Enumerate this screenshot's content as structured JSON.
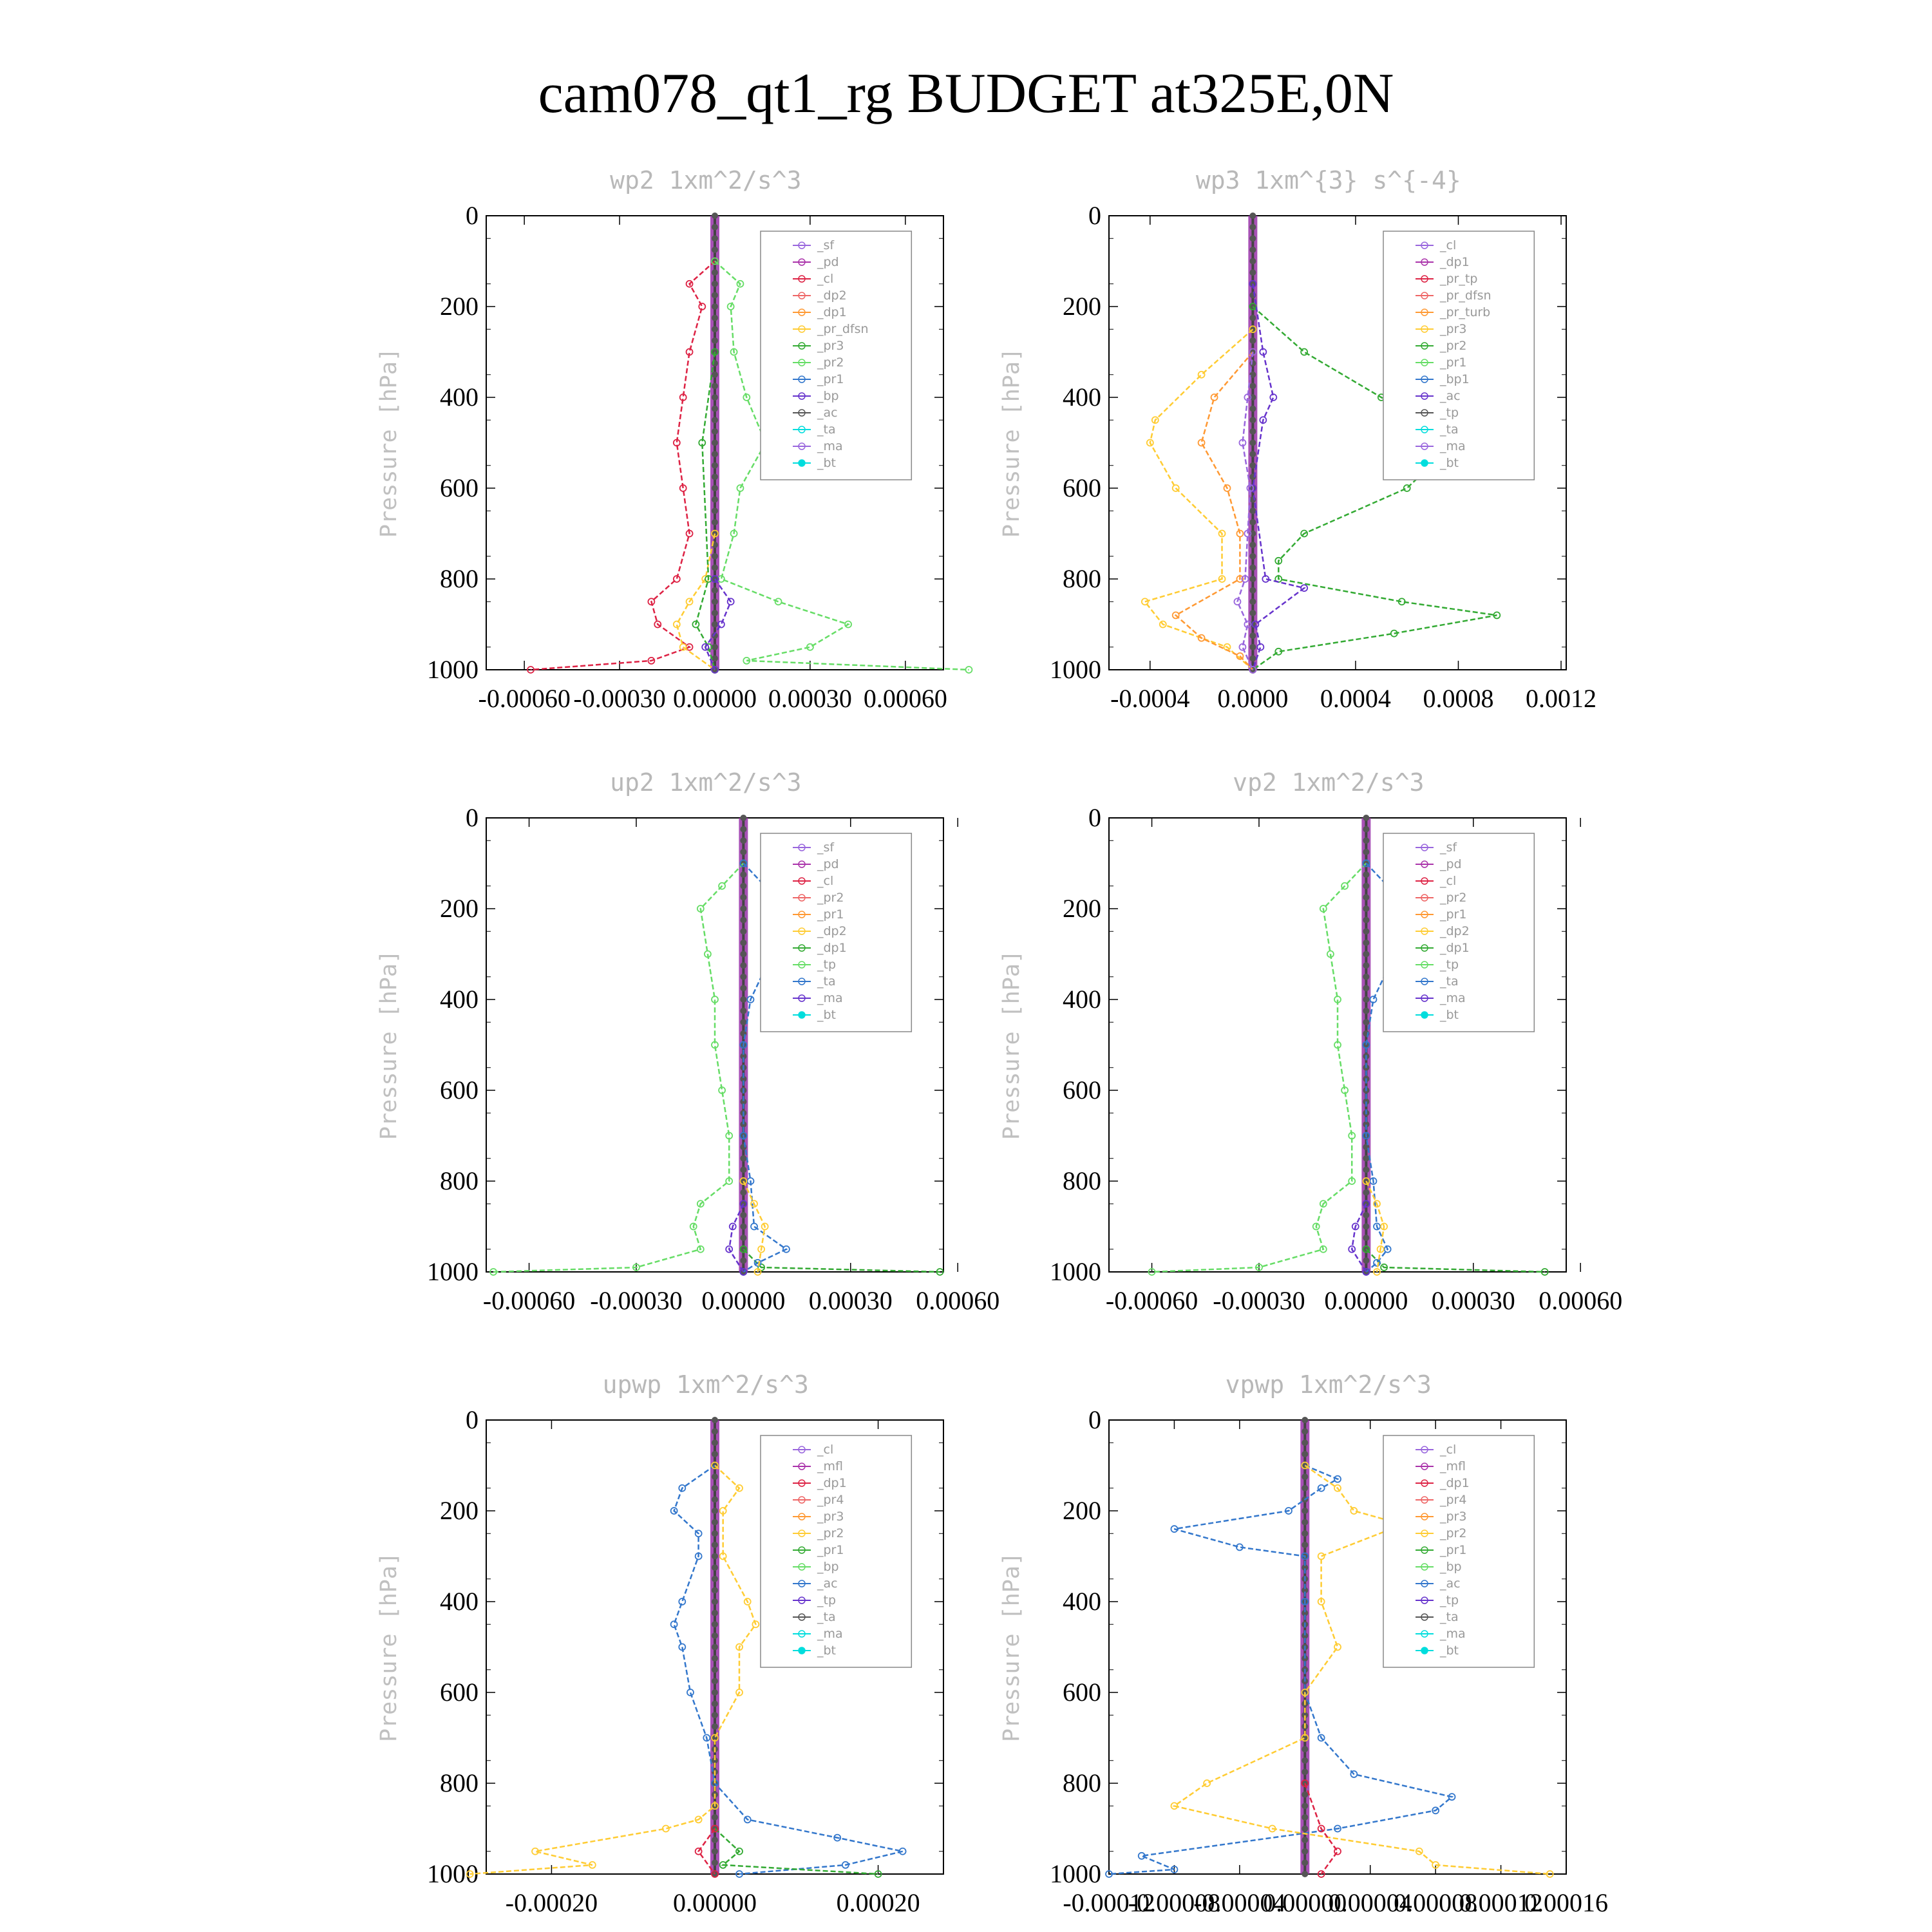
{
  "title": "cam078_qt1_rg  BUDGET at325E,0N",
  "colors": {
    "purple": "#9966dd",
    "magenta": "#aa33aa",
    "red": "#dd2244",
    "lightred": "#ee6666",
    "orange": "#ff9933",
    "yellow": "#ffcc33",
    "green": "#33aa33",
    "lightgreen": "#66dd66",
    "cyan": "#00dddd",
    "blue": "#3377cc",
    "violet": "#6633cc",
    "dark": "#555555"
  },
  "chart_data": [
    {
      "type": "line",
      "title": "wp2  1xm^2/s^3",
      "ylabel": "Pressure [hPa]",
      "xlim": [
        -0.00072,
        0.00072
      ],
      "ylim": [
        0,
        1000
      ],
      "xticks": [
        -0.0006,
        -0.0003,
        0,
        0.0003,
        0.0006
      ],
      "xtick_labels": [
        "-0.00060",
        "-0.00030",
        "0.00000",
        "0.00030",
        "0.00060"
      ],
      "yticks": [
        0,
        200,
        400,
        600,
        800,
        1000
      ],
      "ytick_labels": [
        "0",
        "200",
        "400",
        "600",
        "800",
        "1000"
      ],
      "legend": [
        "_sf",
        "_pd",
        "_cl",
        "_dp2",
        "_dp1",
        "_pr_dfsn",
        "_pr3",
        "_pr2",
        "_pr1",
        "_bp",
        "_ac",
        "_ta",
        "_ma",
        "_bt"
      ],
      "series": [
        {
          "name": "_dp1",
          "color": "#dd2244",
          "p": [
            100,
            150,
            200,
            300,
            400,
            500,
            600,
            700,
            800,
            850,
            900,
            950,
            980,
            1000
          ],
          "v": [
            0,
            -8e-05,
            -4e-05,
            -8e-05,
            -0.0001,
            -0.00012,
            -0.0001,
            -8e-05,
            -0.00012,
            -0.0002,
            -0.00018,
            -8e-05,
            -0.0002,
            -0.00058
          ]
        },
        {
          "name": "_pr1",
          "color": "#66dd66",
          "p": [
            100,
            150,
            200,
            300,
            400,
            500,
            600,
            700,
            800,
            850,
            900,
            950,
            980,
            1000
          ],
          "v": [
            0,
            8e-05,
            5e-05,
            6e-05,
            0.0001,
            0.00016,
            8e-05,
            6e-05,
            2e-05,
            0.0002,
            0.00042,
            0.0003,
            0.0001,
            0.0008
          ]
        },
        {
          "name": "_pr2",
          "color": "#ffcc33",
          "p": [
            700,
            800,
            850,
            900,
            950,
            1000
          ],
          "v": [
            0,
            -3e-05,
            -8e-05,
            -0.00012,
            -0.0001,
            0
          ]
        },
        {
          "name": "_bp",
          "color": "#33aa33",
          "p": [
            300,
            500,
            800,
            900,
            950,
            1000
          ],
          "v": [
            0,
            -4e-05,
            -2e-05,
            -6e-05,
            -2e-05,
            0
          ]
        },
        {
          "name": "_ta",
          "color": "#6633cc",
          "p": [
            800,
            850,
            900,
            950,
            1000
          ],
          "v": [
            0,
            5e-05,
            2e-05,
            -3e-05,
            0
          ]
        }
      ]
    },
    {
      "type": "line",
      "title": "wp3  1xm^{3} s^{-4}",
      "ylabel": "Pressure [hPa]",
      "xlim": [
        -0.00056,
        0.00122
      ],
      "ylim": [
        0,
        1000
      ],
      "xticks": [
        -0.0004,
        0,
        0.0004,
        0.0008,
        0.0012
      ],
      "xtick_labels": [
        "-0.0004",
        "0.0000",
        "0.0004",
        "0.0008",
        "0.0012"
      ],
      "yticks": [
        0,
        200,
        400,
        600,
        800,
        1000
      ],
      "ytick_labels": [
        "0",
        "200",
        "400",
        "600",
        "800",
        "1000"
      ],
      "legend": [
        "_cl",
        "_dp1",
        "_pr_tp",
        "_pr_dfsn",
        "_pr_turb",
        "_pr3",
        "_pr2",
        "_pr1",
        "_bp1",
        "_ac",
        "_tp",
        "_ta",
        "_ma",
        "_bt"
      ],
      "series": [
        {
          "name": "_bp1",
          "color": "#33aa33",
          "p": [
            200,
            300,
            400,
            470,
            520,
            600,
            700,
            760,
            800,
            850,
            880,
            920,
            960,
            1000
          ],
          "v": [
            0,
            0.0002,
            0.0005,
            0.00072,
            0.00075,
            0.0006,
            0.0002,
            0.0001,
            0.0001,
            0.00058,
            0.00095,
            0.00055,
            0.0001,
            0
          ]
        },
        {
          "name": "_pr2",
          "color": "#ffcc33",
          "p": [
            250,
            350,
            450,
            500,
            600,
            700,
            800,
            850,
            900,
            950,
            1000
          ],
          "v": [
            0,
            -0.0002,
            -0.00038,
            -0.0004,
            -0.0003,
            -0.00012,
            -0.00012,
            -0.00042,
            -0.00035,
            -0.0001,
            0
          ]
        },
        {
          "name": "_pr1",
          "color": "#ff9933",
          "p": [
            300,
            400,
            500,
            600,
            700,
            800,
            880,
            930,
            970,
            1000
          ],
          "v": [
            0,
            -0.00015,
            -0.0002,
            -0.0001,
            -5e-05,
            -5e-05,
            -0.0003,
            -0.0002,
            -5e-05,
            0
          ]
        },
        {
          "name": "_ta",
          "color": "#6633cc",
          "p": [
            150,
            300,
            400,
            450,
            600,
            800,
            820,
            900,
            950,
            1000
          ],
          "v": [
            0,
            4e-05,
            8e-05,
            4e-05,
            0,
            5e-05,
            0.0002,
            1e-05,
            3e-05,
            0
          ]
        },
        {
          "name": "_cl",
          "color": "#9966dd",
          "p": [
            300,
            400,
            500,
            600,
            700,
            800,
            850,
            900,
            950,
            1000
          ],
          "v": [
            0,
            -2e-05,
            -4e-05,
            -1e-05,
            -2e-05,
            -3e-05,
            -6e-05,
            -2e-05,
            -4e-05,
            0
          ]
        }
      ]
    },
    {
      "type": "line",
      "title": "up2  1xm^2/s^3",
      "ylabel": "Pressure [hPa]",
      "xlim": [
        -0.00072,
        0.00056
      ],
      "ylim": [
        0,
        1000
      ],
      "xticks": [
        -0.0006,
        -0.0003,
        0,
        0.0003,
        0.0006
      ],
      "xtick_labels": [
        "-0.00060",
        "-0.00030",
        "0.00000",
        "0.00030",
        "0.00060"
      ],
      "yticks": [
        0,
        200,
        400,
        600,
        800,
        1000
      ],
      "ytick_labels": [
        "0",
        "200",
        "400",
        "600",
        "800",
        "1000"
      ],
      "legend": [
        "_sf",
        "_pd",
        "_cl",
        "_pr2",
        "_pr1",
        "_dp2",
        "_dp1",
        "_tp",
        "_ta",
        "_ma",
        "_bt"
      ],
      "series": [
        {
          "name": "_dp1",
          "color": "#66dd66",
          "p": [
            100,
            150,
            200,
            300,
            400,
            500,
            600,
            700,
            800,
            850,
            900,
            950,
            990,
            1000
          ],
          "v": [
            0,
            -6e-05,
            -0.00012,
            -0.0001,
            -8e-05,
            -8e-05,
            -6e-05,
            -4e-05,
            -4e-05,
            -0.00012,
            -0.00014,
            -0.00012,
            -0.0003,
            -0.0007
          ]
        },
        {
          "name": "_dp2",
          "color": "#33aa33",
          "p": [
            950,
            990,
            1000
          ],
          "v": [
            0,
            5e-05,
            0.00055
          ]
        },
        {
          "name": "_tp",
          "color": "#3377cc",
          "p": [
            100,
            150,
            200,
            250,
            300,
            400,
            500,
            700,
            800,
            900,
            950,
            980,
            1000
          ],
          "v": [
            0,
            6e-05,
            0.00015,
            0.0001,
            8e-05,
            2e-05,
            0,
            0,
            2e-05,
            3e-05,
            0.00012,
            4e-05,
            0
          ]
        },
        {
          "name": "_pr1",
          "color": "#ffcc33",
          "p": [
            800,
            850,
            900,
            950,
            1000
          ],
          "v": [
            0,
            3e-05,
            6e-05,
            5e-05,
            4e-05
          ]
        },
        {
          "name": "_ta",
          "color": "#6633cc",
          "p": [
            850,
            900,
            950,
            1000
          ],
          "v": [
            0,
            -3e-05,
            -4e-05,
            0
          ]
        }
      ]
    },
    {
      "type": "line",
      "title": "vp2  1xm^2/s^3",
      "ylabel": "Pressure [hPa]",
      "xlim": [
        -0.00072,
        0.00056
      ],
      "ylim": [
        0,
        1000
      ],
      "xticks": [
        -0.0006,
        -0.0003,
        0,
        0.0003,
        0.0006
      ],
      "xtick_labels": [
        "-0.00060",
        "-0.00030",
        "0.00000",
        "0.00030",
        "0.00060"
      ],
      "yticks": [
        0,
        200,
        400,
        600,
        800,
        1000
      ],
      "ytick_labels": [
        "0",
        "200",
        "400",
        "600",
        "800",
        "1000"
      ],
      "legend": [
        "_sf",
        "_pd",
        "_cl",
        "_pr2",
        "_pr1",
        "_dp2",
        "_dp1",
        "_tp",
        "_ta",
        "_ma",
        "_bt"
      ],
      "series": [
        {
          "name": "_dp1",
          "color": "#66dd66",
          "p": [
            100,
            150,
            200,
            300,
            400,
            500,
            600,
            700,
            800,
            850,
            900,
            950,
            990,
            1000
          ],
          "v": [
            0,
            -6e-05,
            -0.00012,
            -0.0001,
            -8e-05,
            -8e-05,
            -6e-05,
            -4e-05,
            -4e-05,
            -0.00012,
            -0.00014,
            -0.00012,
            -0.0003,
            -0.0006
          ]
        },
        {
          "name": "_dp2",
          "color": "#33aa33",
          "p": [
            950,
            990,
            1000
          ],
          "v": [
            0,
            5e-05,
            0.0005
          ]
        },
        {
          "name": "_tp",
          "color": "#3377cc",
          "p": [
            100,
            150,
            200,
            250,
            300,
            400,
            500,
            700,
            800,
            900,
            950,
            980,
            1000
          ],
          "v": [
            0,
            6e-05,
            0.00012,
            0.0001,
            8e-05,
            2e-05,
            0,
            0,
            2e-05,
            3e-05,
            6e-05,
            3e-05,
            0
          ]
        },
        {
          "name": "_pr1",
          "color": "#ffcc33",
          "p": [
            800,
            850,
            900,
            950,
            1000
          ],
          "v": [
            0,
            3e-05,
            5e-05,
            4e-05,
            3e-05
          ]
        },
        {
          "name": "_ta",
          "color": "#6633cc",
          "p": [
            850,
            900,
            950,
            1000
          ],
          "v": [
            0,
            -3e-05,
            -4e-05,
            0
          ]
        }
      ]
    },
    {
      "type": "line",
      "title": "upwp  1xm^2/s^3",
      "ylabel": "Pressure [hPa]",
      "xlim": [
        -0.00028,
        0.00028
      ],
      "ylim": [
        0,
        1000
      ],
      "xticks": [
        -0.0002,
        0,
        0.0002
      ],
      "xtick_labels": [
        "-0.00020",
        "0.00000",
        "0.00020"
      ],
      "yticks": [
        0,
        200,
        400,
        600,
        800,
        1000
      ],
      "ytick_labels": [
        "0",
        "200",
        "400",
        "600",
        "800",
        "1000"
      ],
      "legend": [
        "_cl",
        "_mfl",
        "_dp1",
        "_pr4",
        "_pr3",
        "_pr2",
        "_pr1",
        "_bp",
        "_ac",
        "_tp",
        "_ta",
        "_ma",
        "_bt"
      ],
      "series": [
        {
          "name": "_tp",
          "color": "#3377cc",
          "p": [
            100,
            150,
            200,
            250,
            300,
            400,
            450,
            500,
            600,
            700,
            800,
            880,
            920,
            950,
            980,
            1000
          ],
          "v": [
            0,
            -4e-05,
            -5e-05,
            -2e-05,
            -2e-05,
            -4e-05,
            -5e-05,
            -4e-05,
            -3e-05,
            -1e-05,
            0,
            4e-05,
            0.00015,
            0.00023,
            0.00016,
            3e-05
          ]
        },
        {
          "name": "_pr1",
          "color": "#ffcc33",
          "p": [
            100,
            150,
            200,
            300,
            400,
            450,
            500,
            600,
            700,
            850,
            880,
            900,
            950,
            980,
            1000
          ],
          "v": [
            0,
            3e-05,
            1e-05,
            1e-05,
            4e-05,
            5e-05,
            3e-05,
            3e-05,
            0,
            0,
            -2e-05,
            -6e-05,
            -0.00022,
            -0.00015,
            -0.0003
          ]
        },
        {
          "name": "_bp",
          "color": "#33aa33",
          "p": [
            900,
            950,
            980,
            1000
          ],
          "v": [
            0,
            3e-05,
            1e-05,
            0.0002
          ]
        },
        {
          "name": "_dp1",
          "color": "#dd2244",
          "p": [
            900,
            950,
            1000
          ],
          "v": [
            0,
            -2e-05,
            0
          ]
        }
      ]
    },
    {
      "type": "line",
      "title": "vpwp  1xm^2/s^3",
      "ylabel": "Pressure [hPa]",
      "xlim": [
        -0.00012,
        0.00016
      ],
      "ylim": [
        0,
        1000
      ],
      "xticks": [
        -0.00012,
        -8e-05,
        -4e-05,
        0,
        4e-05,
        8e-05,
        0.00012,
        0.00016
      ],
      "xtick_labels": [
        "-0.00012",
        "-0.00008",
        "-0.00004",
        "0.00000",
        "0.00004",
        "0.00008",
        "0.00012",
        "0.00016"
      ],
      "yticks": [
        0,
        200,
        400,
        600,
        800,
        1000
      ],
      "ytick_labels": [
        "0",
        "200",
        "400",
        "600",
        "800",
        "1000"
      ],
      "legend": [
        "_cl",
        "_mfl",
        "_dp1",
        "_pr4",
        "_pr3",
        "_pr2",
        "_pr1",
        "_bp",
        "_ac",
        "_tp",
        "_ta",
        "_ma",
        "_bt"
      ],
      "series": [
        {
          "name": "_tp",
          "color": "#3377cc",
          "p": [
            100,
            130,
            150,
            200,
            240,
            280,
            300,
            400,
            600,
            700,
            780,
            830,
            860,
            900,
            960,
            990,
            1000
          ],
          "v": [
            0,
            2e-05,
            1e-05,
            -1e-05,
            -8e-05,
            -4e-05,
            0,
            0,
            0,
            1e-05,
            3e-05,
            9e-05,
            8e-05,
            2e-05,
            -0.0001,
            -8e-05,
            -0.00012
          ]
        },
        {
          "name": "_pr1",
          "color": "#ffcc33",
          "p": [
            100,
            150,
            200,
            230,
            300,
            400,
            500,
            600,
            700,
            800,
            850,
            900,
            950,
            980,
            1000
          ],
          "v": [
            0,
            2e-05,
            3e-05,
            6e-05,
            1e-05,
            1e-05,
            2e-05,
            0,
            0,
            -6e-05,
            -8e-05,
            -2e-05,
            7e-05,
            8e-05,
            0.00015
          ]
        },
        {
          "name": "_dp1",
          "color": "#dd2244",
          "p": [
            800,
            900,
            950,
            1000
          ],
          "v": [
            0,
            1e-05,
            2e-05,
            1e-05
          ]
        }
      ]
    }
  ]
}
